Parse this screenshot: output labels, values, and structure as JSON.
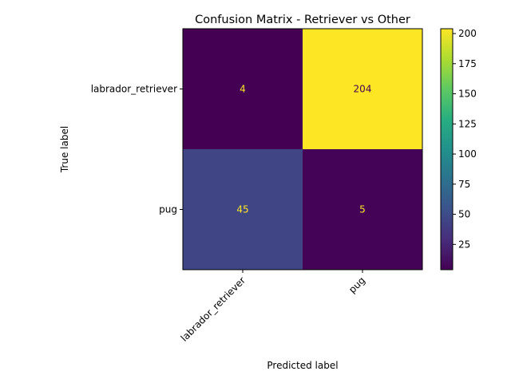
{
  "chart_data": {
    "type": "heatmap",
    "title": "Confusion Matrix - Retriever vs Other",
    "xlabel": "Predicted label",
    "ylabel": "True label",
    "x_categories": [
      "labrador_retriever",
      "pug"
    ],
    "y_categories": [
      "labrador_retriever",
      "pug"
    ],
    "values": [
      [
        4,
        204
      ],
      [
        45,
        5
      ]
    ],
    "colormap": "viridis",
    "color_range": [
      4,
      204
    ],
    "colorbar_ticks": [
      25,
      50,
      75,
      100,
      125,
      150,
      175,
      200
    ],
    "x_tick_rotation": 45,
    "grid": false,
    "colorbar": "right"
  }
}
